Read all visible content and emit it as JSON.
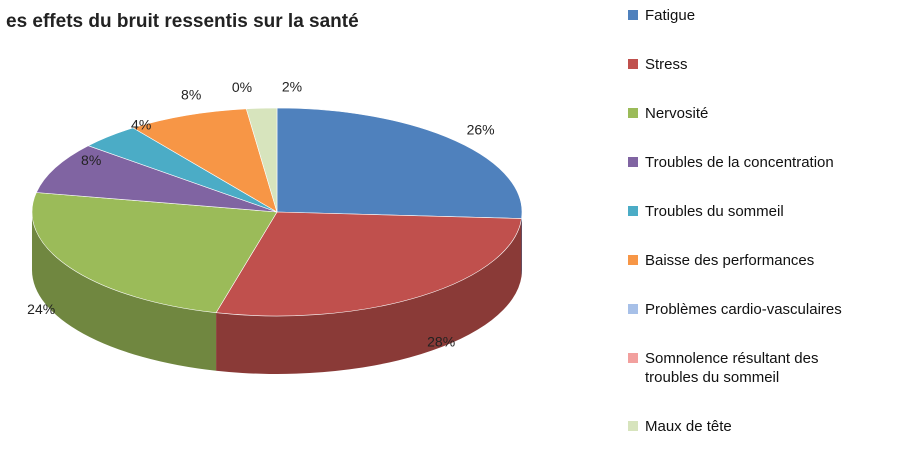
{
  "chart_data": {
    "type": "pie3d",
    "title": "es effets du bruit ressentis sur la santé",
    "categories": [
      "Fatigue",
      "Stress",
      "Nervosité",
      "Troubles de la concentration",
      "Troubles du sommeil",
      "Baisse des performances",
      "Problèmes cardio-vasculaires",
      "Somnolence résultant des troubles du sommeil",
      "Maux de tête"
    ],
    "values": [
      26,
      28,
      24,
      8,
      4,
      8,
      0,
      0,
      2
    ],
    "value_labels": [
      "26%",
      "28%",
      "24%",
      "8%",
      "4%",
      "8%",
      "0%",
      null,
      "2%"
    ],
    "colors": [
      "#4f81bd",
      "#c0504d",
      "#9bbb59",
      "#8064a2",
      "#4bacc6",
      "#f79646",
      "#a7c0e8",
      "#f2a09e",
      "#d7e4bd"
    ],
    "legend": "right"
  }
}
